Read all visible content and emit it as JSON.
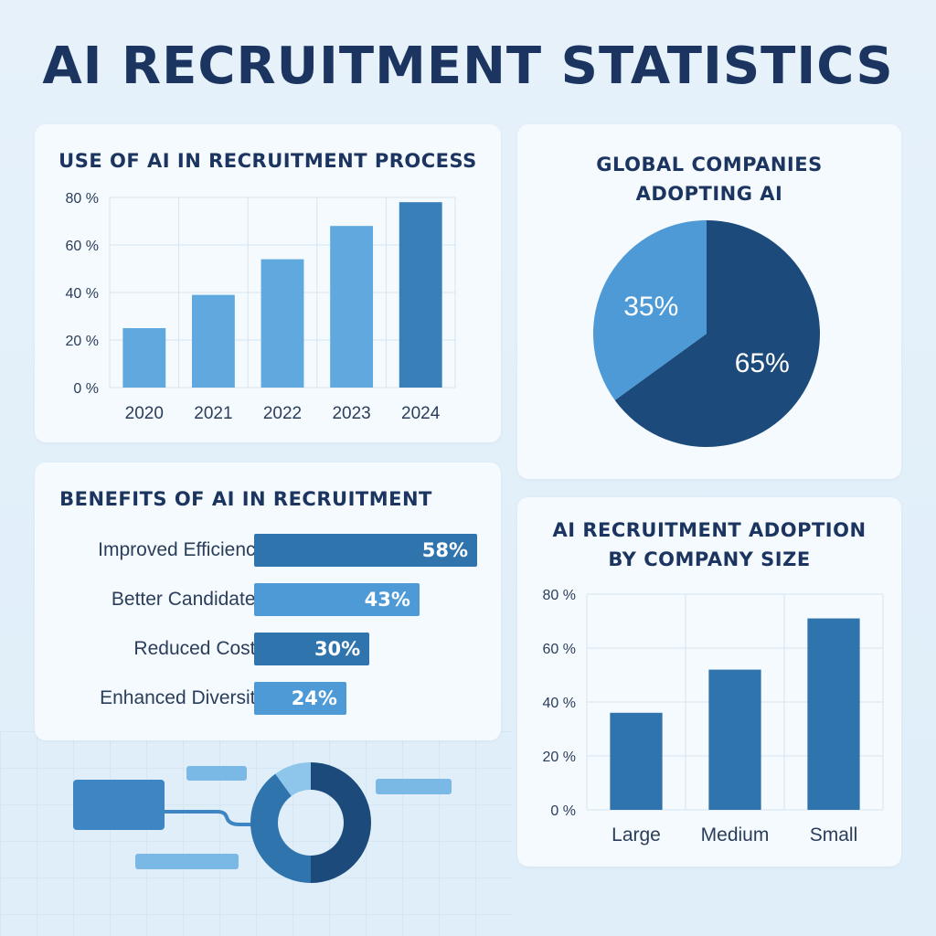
{
  "page": {
    "title": "AI RECRUITMENT STATISTICS"
  },
  "colors": {
    "dark": "#1c4a7a",
    "mid": "#2f74ad",
    "light": "#5ba8de",
    "pale": "#8ec5ea",
    "title": "#1b3560"
  },
  "chart_data": [
    {
      "id": "use_of_ai",
      "type": "bar",
      "title": "USE OF AI IN RECRUITMENT PROCESS",
      "categories": [
        "2020",
        "2021",
        "2022",
        "2023",
        "2024"
      ],
      "values": [
        25,
        39,
        54,
        68,
        78
      ],
      "ylim": [
        0,
        80
      ],
      "yticks": [
        "0 %",
        "20 %",
        "40 %",
        "60 %",
        "80 %"
      ],
      "ytick_values": [
        0,
        20,
        40,
        60,
        80
      ],
      "grid": true,
      "colors": [
        "#5fa9df",
        "#5fa9df",
        "#5fa9df",
        "#5fa9df",
        "#3a80b8"
      ]
    },
    {
      "id": "global_companies",
      "type": "pie",
      "title": "GLOBAL COMPANIES ADOPTING AI",
      "title_lines": [
        "GLOBAL COMPANIES",
        "ADOPTING AI"
      ],
      "slices": [
        {
          "label": "65%",
          "value": 65,
          "color": "#1c4a7a"
        },
        {
          "label": "35%",
          "value": 35,
          "color": "#4d9ad6"
        }
      ]
    },
    {
      "id": "benefits",
      "type": "bar",
      "orientation": "horizontal",
      "title": "BENEFITS OF AI IN RECRUITMENT",
      "categories": [
        "Improved Efficiency",
        "Better Candidates",
        "Reduced Costs",
        "Enhanced Diversity"
      ],
      "values": [
        58,
        43,
        30,
        24
      ],
      "value_labels": [
        "58%",
        "43%",
        "30%",
        "24%"
      ],
      "colors": [
        "#2f74ad",
        "#4d9ad6",
        "#2f74ad",
        "#4d9ad6"
      ]
    },
    {
      "id": "by_company_size",
      "type": "bar",
      "title": "AI RECRUITMENT ADOPTION BY COMPANY SIZE",
      "title_lines": [
        "AI RECRUITMENT ADOPTION",
        "BY COMPANY SIZE"
      ],
      "categories": [
        "Large",
        "Medium",
        "Small"
      ],
      "values": [
        36,
        52,
        71
      ],
      "ylim": [
        0,
        80
      ],
      "yticks": [
        "0 %",
        "20 %",
        "40 %",
        "60 %",
        "80 %"
      ],
      "ytick_values": [
        0,
        20,
        40,
        60,
        80
      ],
      "grid": true,
      "colors": [
        "#2f74ad",
        "#2f74ad",
        "#2f74ad"
      ]
    }
  ],
  "decoration": {
    "donut": [
      {
        "value": 50,
        "color": "#1c4a7a"
      },
      {
        "value": 40,
        "color": "#2f74ad"
      },
      {
        "value": 10,
        "color": "#8ec5ea"
      }
    ]
  }
}
